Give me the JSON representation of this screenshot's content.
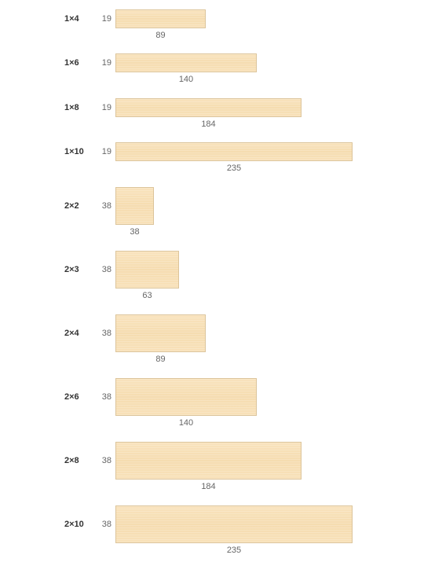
{
  "boards": [
    {
      "name": "1×4",
      "thickness": "19",
      "width": "89"
    },
    {
      "name": "1×6",
      "thickness": "19",
      "width": "140"
    },
    {
      "name": "1×8",
      "thickness": "19",
      "width": "184"
    },
    {
      "name": "1×10",
      "thickness": "19",
      "width": "235"
    },
    {
      "name": "2×2",
      "thickness": "38",
      "width": "38"
    },
    {
      "name": "2×3",
      "thickness": "38",
      "width": "63"
    },
    {
      "name": "2×4",
      "thickness": "38",
      "width": "89"
    },
    {
      "name": "2×6",
      "thickness": "38",
      "width": "140"
    },
    {
      "name": "2×8",
      "thickness": "38",
      "width": "184"
    },
    {
      "name": "2×10",
      "thickness": "38",
      "width": "235"
    }
  ],
  "colors": {
    "wood": "#f7dfb6",
    "wood_edge": "#dcc49a",
    "text": "#333333",
    "dim_text": "#666666"
  }
}
